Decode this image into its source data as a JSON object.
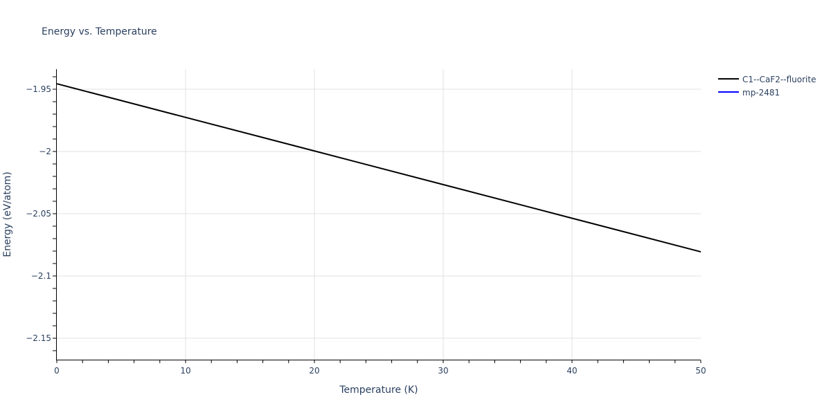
{
  "title": "Energy vs. Temperature",
  "chart_data": {
    "type": "line",
    "title": "Energy vs. Temperature",
    "xlabel": "Temperature (K)",
    "ylabel": "Energy (eV/atom)",
    "xlim": [
      0,
      50
    ],
    "ylim": [
      -2.1667,
      -1.9383
    ],
    "x_ticks": [
      "0",
      "10",
      "20",
      "30",
      "40",
      "50"
    ],
    "y_ticks": [
      "−1.95",
      "−2",
      "−2.05",
      "−2.1",
      "−2.15"
    ],
    "grid": true,
    "legend_position": "right-top",
    "series": [
      {
        "name": "C1--CaF2--fluorite",
        "color": "#000000",
        "x": [
          0,
          10,
          20,
          30,
          40,
          50
        ],
        "values": [
          -1.9456,
          -1.9726,
          -1.9996,
          -2.0266,
          -2.0536,
          -2.0806
        ]
      },
      {
        "name": "mp-2481",
        "color": "#0000ff",
        "x": [],
        "values": []
      }
    ]
  }
}
